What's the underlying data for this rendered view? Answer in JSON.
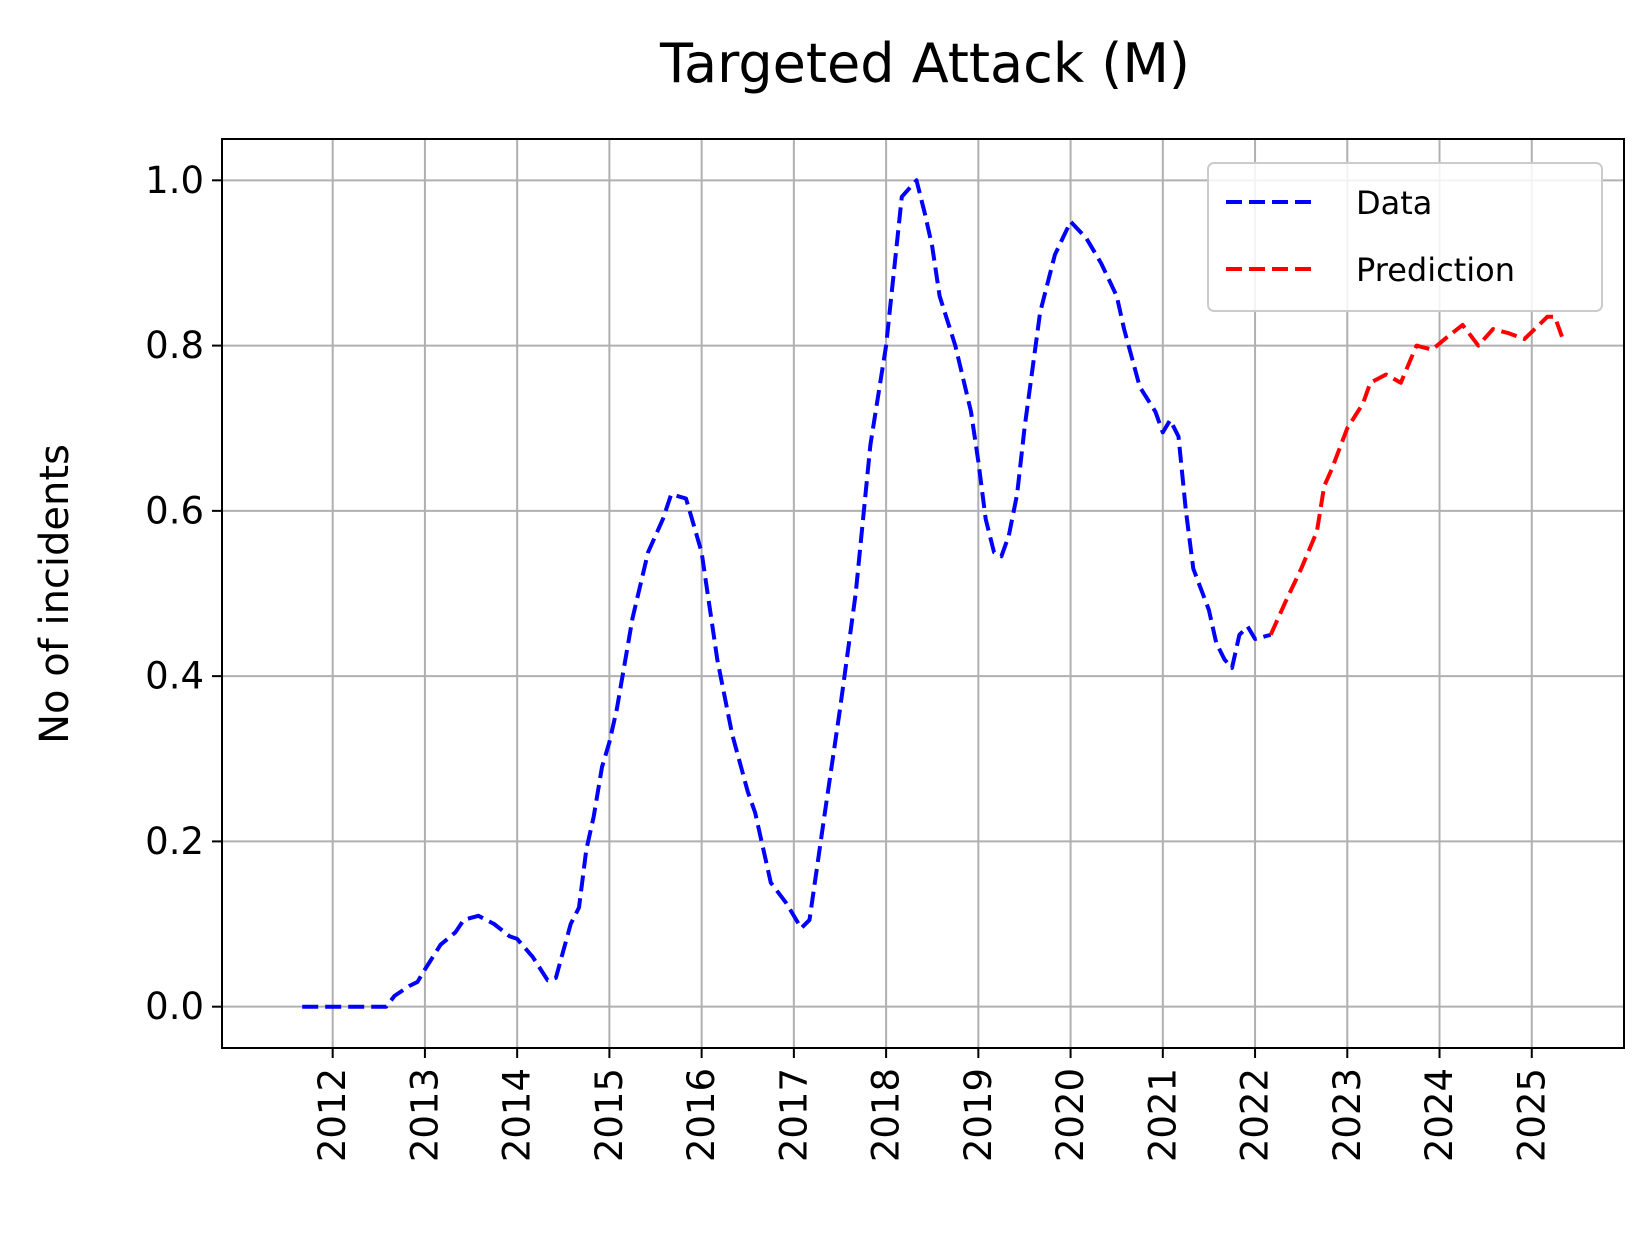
{
  "chart_data": {
    "type": "line",
    "title": "Targeted Attack (M)",
    "xlabel": "",
    "ylabel": "No of incidents",
    "xlim": [
      2010.8,
      2026.0
    ],
    "ylim": [
      -0.05,
      1.05
    ],
    "x_ticks": [
      "2012",
      "2013",
      "2014",
      "2015",
      "2016",
      "2017",
      "2018",
      "2019",
      "2020",
      "2021",
      "2022",
      "2023",
      "2024",
      "2025"
    ],
    "y_ticks": [
      "0.0",
      "0.2",
      "0.4",
      "0.6",
      "0.8",
      "1.0"
    ],
    "grid": true,
    "legend_position": "top-right",
    "series": [
      {
        "name": "Data",
        "color": "#0000ff",
        "style": "dashed",
        "points": [
          [
            2011.67,
            0.0
          ],
          [
            2012.0,
            0.0
          ],
          [
            2012.3,
            0.0
          ],
          [
            2012.58,
            0.0
          ],
          [
            2012.67,
            0.013
          ],
          [
            2012.83,
            0.025
          ],
          [
            2012.92,
            0.03
          ],
          [
            2013.0,
            0.045
          ],
          [
            2013.17,
            0.075
          ],
          [
            2013.33,
            0.09
          ],
          [
            2013.42,
            0.105
          ],
          [
            2013.58,
            0.11
          ],
          [
            2013.75,
            0.1
          ],
          [
            2013.92,
            0.085
          ],
          [
            2014.0,
            0.082
          ],
          [
            2014.17,
            0.06
          ],
          [
            2014.33,
            0.032
          ],
          [
            2014.42,
            0.035
          ],
          [
            2014.58,
            0.1
          ],
          [
            2014.67,
            0.12
          ],
          [
            2014.75,
            0.19
          ],
          [
            2014.83,
            0.23
          ],
          [
            2014.92,
            0.29
          ],
          [
            2015.0,
            0.32
          ],
          [
            2015.08,
            0.36
          ],
          [
            2015.25,
            0.47
          ],
          [
            2015.42,
            0.55
          ],
          [
            2015.58,
            0.59
          ],
          [
            2015.67,
            0.62
          ],
          [
            2015.83,
            0.615
          ],
          [
            2016.0,
            0.55
          ],
          [
            2016.17,
            0.42
          ],
          [
            2016.33,
            0.33
          ],
          [
            2016.5,
            0.26
          ],
          [
            2016.58,
            0.235
          ],
          [
            2016.75,
            0.15
          ],
          [
            2016.92,
            0.125
          ],
          [
            2017.08,
            0.095
          ],
          [
            2017.17,
            0.105
          ],
          [
            2017.33,
            0.23
          ],
          [
            2017.5,
            0.36
          ],
          [
            2017.67,
            0.5
          ],
          [
            2017.83,
            0.68
          ],
          [
            2018.0,
            0.8
          ],
          [
            2018.17,
            0.98
          ],
          [
            2018.33,
            1.0
          ],
          [
            2018.42,
            0.96
          ],
          [
            2018.5,
            0.92
          ],
          [
            2018.58,
            0.86
          ],
          [
            2018.75,
            0.8
          ],
          [
            2018.92,
            0.72
          ],
          [
            2019.0,
            0.66
          ],
          [
            2019.08,
            0.59
          ],
          [
            2019.17,
            0.55
          ],
          [
            2019.25,
            0.545
          ],
          [
            2019.33,
            0.57
          ],
          [
            2019.42,
            0.62
          ],
          [
            2019.5,
            0.7
          ],
          [
            2019.67,
            0.84
          ],
          [
            2019.83,
            0.91
          ],
          [
            2020.0,
            0.95
          ],
          [
            2020.17,
            0.93
          ],
          [
            2020.33,
            0.9
          ],
          [
            2020.5,
            0.86
          ],
          [
            2020.58,
            0.82
          ],
          [
            2020.75,
            0.75
          ],
          [
            2020.92,
            0.72
          ],
          [
            2021.0,
            0.695
          ],
          [
            2021.08,
            0.71
          ],
          [
            2021.17,
            0.69
          ],
          [
            2021.25,
            0.6
          ],
          [
            2021.33,
            0.53
          ],
          [
            2021.5,
            0.48
          ],
          [
            2021.58,
            0.44
          ],
          [
            2021.67,
            0.42
          ],
          [
            2021.75,
            0.41
          ],
          [
            2021.83,
            0.45
          ],
          [
            2021.92,
            0.46
          ],
          [
            2022.0,
            0.445
          ],
          [
            2022.17,
            0.45
          ]
        ]
      },
      {
        "name": "Prediction",
        "color": "#ff0000",
        "style": "dashed",
        "points": [
          [
            2022.17,
            0.45
          ],
          [
            2022.33,
            0.49
          ],
          [
            2022.5,
            0.53
          ],
          [
            2022.67,
            0.575
          ],
          [
            2022.75,
            0.63
          ],
          [
            2022.83,
            0.65
          ],
          [
            2023.0,
            0.7
          ],
          [
            2023.17,
            0.73
          ],
          [
            2023.25,
            0.755
          ],
          [
            2023.42,
            0.765
          ],
          [
            2023.58,
            0.755
          ],
          [
            2023.75,
            0.8
          ],
          [
            2023.92,
            0.795
          ],
          [
            2024.08,
            0.81
          ],
          [
            2024.25,
            0.825
          ],
          [
            2024.42,
            0.8
          ],
          [
            2024.58,
            0.82
          ],
          [
            2024.75,
            0.815
          ],
          [
            2024.92,
            0.808
          ],
          [
            2025.08,
            0.825
          ],
          [
            2025.17,
            0.835
          ],
          [
            2025.25,
            0.835
          ],
          [
            2025.33,
            0.81
          ]
        ]
      }
    ]
  }
}
